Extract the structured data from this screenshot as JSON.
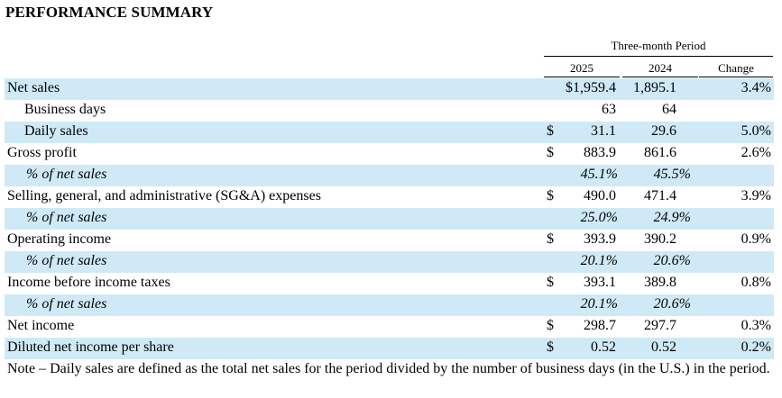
{
  "title": "PERFORMANCE SUMMARY",
  "period_header": "Three-month Period",
  "columns": {
    "y2025": "2025",
    "y2024": "2024",
    "change": "Change"
  },
  "rows": [
    {
      "label": "Net sales",
      "dollar": "",
      "v2025": "$1,959.4",
      "v2024": "1,895.1",
      "change": "3.4%"
    },
    {
      "label": "Business days",
      "dollar": "",
      "v2025": "63",
      "v2024": "64",
      "change": ""
    },
    {
      "label": "Daily sales",
      "dollar": "$",
      "v2025": "31.1",
      "v2024": "29.6",
      "change": "5.0%"
    },
    {
      "label": "Gross profit",
      "dollar": "$",
      "v2025": "883.9",
      "v2024": "861.6",
      "change": "2.6%"
    },
    {
      "label": "% of net sales",
      "dollar": "",
      "v2025": "45.1%",
      "v2024": "45.5%",
      "change": ""
    },
    {
      "label": "Selling, general, and administrative (SG&A) expenses",
      "dollar": "$",
      "v2025": "490.0",
      "v2024": "471.4",
      "change": "3.9%"
    },
    {
      "label": "% of net sales",
      "dollar": "",
      "v2025": "25.0%",
      "v2024": "24.9%",
      "change": ""
    },
    {
      "label": "Operating income",
      "dollar": "$",
      "v2025": "393.9",
      "v2024": "390.2",
      "change": "0.9%"
    },
    {
      "label": "% of net sales",
      "dollar": "",
      "v2025": "20.1%",
      "v2024": "20.6%",
      "change": ""
    },
    {
      "label": "Income before income taxes",
      "dollar": "$",
      "v2025": "393.1",
      "v2024": "389.8",
      "change": "0.8%"
    },
    {
      "label": "% of net sales",
      "dollar": "",
      "v2025": "20.1%",
      "v2024": "20.6%",
      "change": ""
    },
    {
      "label": "Net income",
      "dollar": "$",
      "v2025": "298.7",
      "v2024": "297.7",
      "change": "0.3%"
    },
    {
      "label": "Diluted net income per share",
      "dollar": "$",
      "v2025": "0.52",
      "v2024": "0.52",
      "change": "0.2%"
    }
  ],
  "note": "Note – Daily sales are defined as the total net sales for the period divided by the number of business days (in the U.S.) in the period.",
  "colors": {
    "shade": "#cfeaf6",
    "text": "#000000"
  }
}
